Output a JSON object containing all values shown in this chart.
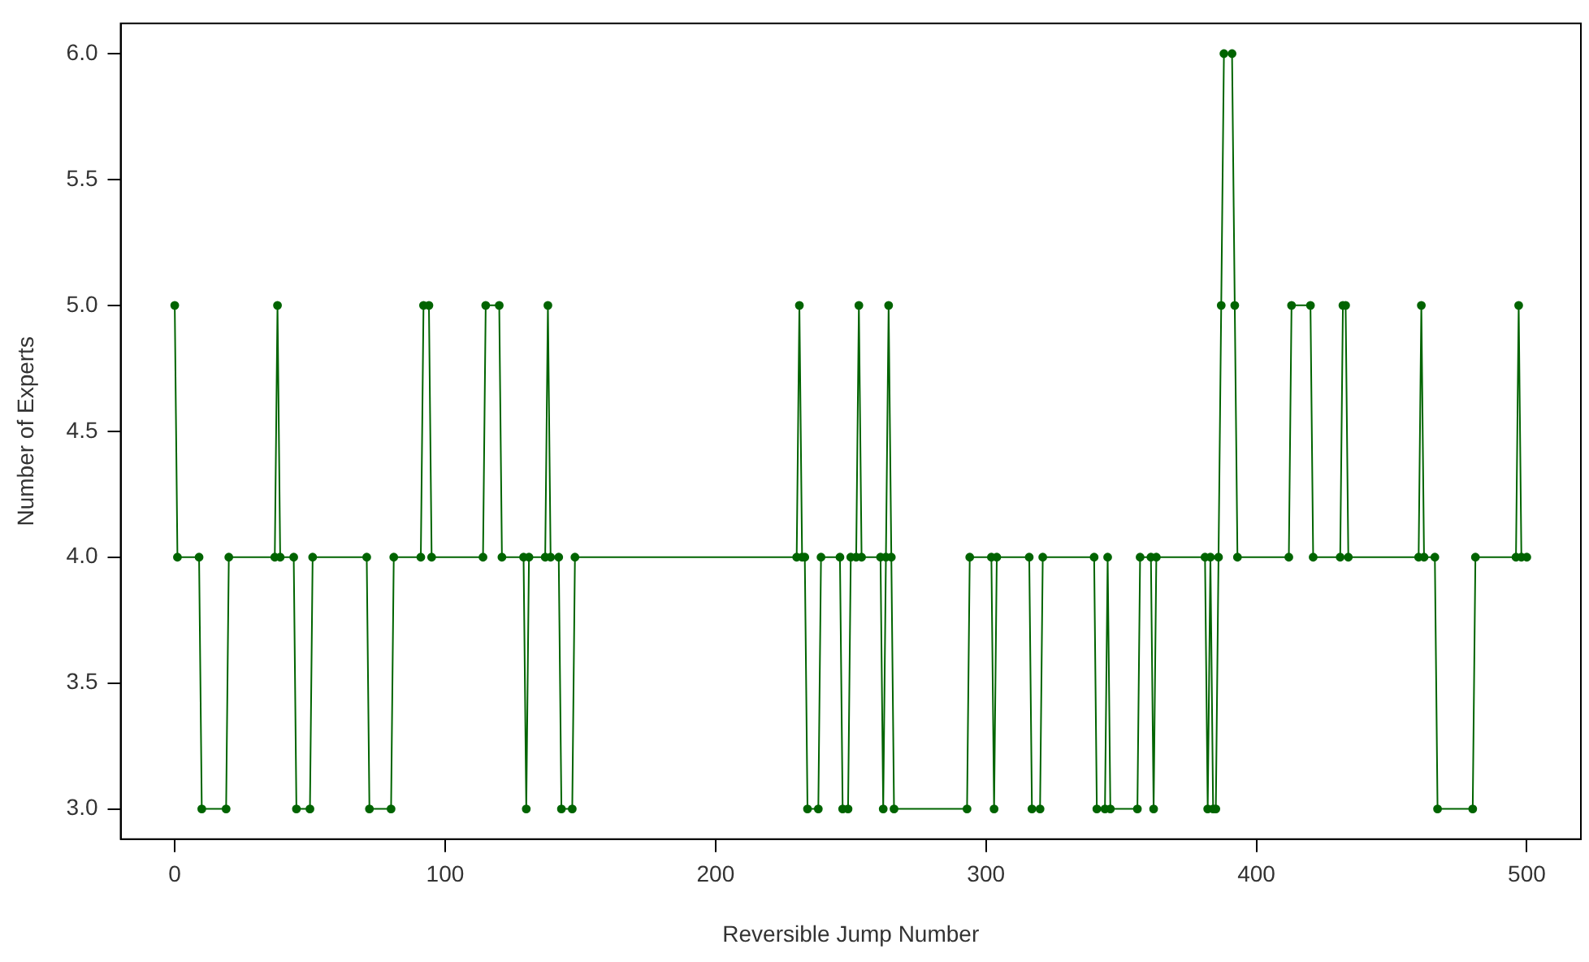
{
  "chart_data": {
    "type": "line",
    "xlabel": "Reversible Jump Number",
    "ylabel": "Number of Experts",
    "x": [
      0,
      1,
      9,
      10,
      19,
      20,
      37,
      38,
      39,
      44,
      45,
      50,
      51,
      71,
      72,
      80,
      81,
      91,
      92,
      94,
      95,
      114,
      115,
      120,
      121,
      129,
      130,
      131,
      137,
      138,
      139,
      142,
      143,
      147,
      148,
      230,
      231,
      232,
      233,
      234,
      238,
      239,
      246,
      247,
      249,
      250,
      252,
      253,
      254,
      261,
      262,
      263,
      264,
      265,
      266,
      293,
      294,
      302,
      303,
      304,
      316,
      317,
      320,
      321,
      340,
      341,
      344,
      345,
      346,
      356,
      357,
      361,
      362,
      363,
      381,
      382,
      383,
      384,
      385,
      386,
      387,
      388,
      391,
      392,
      393,
      412,
      413,
      420,
      421,
      431,
      432,
      433,
      434,
      460,
      461,
      462,
      466,
      467,
      480,
      481,
      496,
      497,
      498,
      500
    ],
    "series": [
      {
        "color": "#006400",
        "values": [
          5,
          4,
          4,
          3,
          3,
          4,
          4,
          5,
          4,
          4,
          3,
          3,
          4,
          4,
          3,
          3,
          4,
          4,
          5,
          5,
          4,
          4,
          5,
          5,
          4,
          4,
          3,
          4,
          4,
          5,
          4,
          4,
          3,
          3,
          4,
          4,
          5,
          4,
          4,
          3,
          3,
          4,
          4,
          3,
          3,
          4,
          4,
          5,
          4,
          4,
          3,
          4,
          5,
          4,
          3,
          3,
          4,
          4,
          3,
          4,
          4,
          3,
          3,
          4,
          4,
          3,
          3,
          4,
          3,
          3,
          4,
          4,
          3,
          4,
          4,
          3,
          4,
          3,
          3,
          4,
          5,
          6,
          6,
          5,
          4,
          4,
          5,
          5,
          4,
          4,
          5,
          5,
          4,
          4,
          5,
          4,
          4,
          3,
          3,
          4,
          4,
          5,
          4,
          4
        ]
      }
    ],
    "xlim": [
      -20,
      520
    ],
    "xticks": [
      0,
      100,
      200,
      300,
      400,
      500
    ],
    "ylim": [
      2.88,
      6.12
    ],
    "yticks": [
      {
        "value": 3,
        "label": "3.0"
      },
      {
        "value": 3.5,
        "label": "3.5"
      },
      {
        "value": 4,
        "label": "4.0"
      },
      {
        "value": 4.5,
        "label": "4.5"
      },
      {
        "value": 5,
        "label": "5.0"
      },
      {
        "value": 5.5,
        "label": "5.5"
      },
      {
        "value": 6,
        "label": "6.0"
      }
    ],
    "grid": false,
    "legend": false,
    "marker": "circle",
    "line_style": "solid"
  }
}
